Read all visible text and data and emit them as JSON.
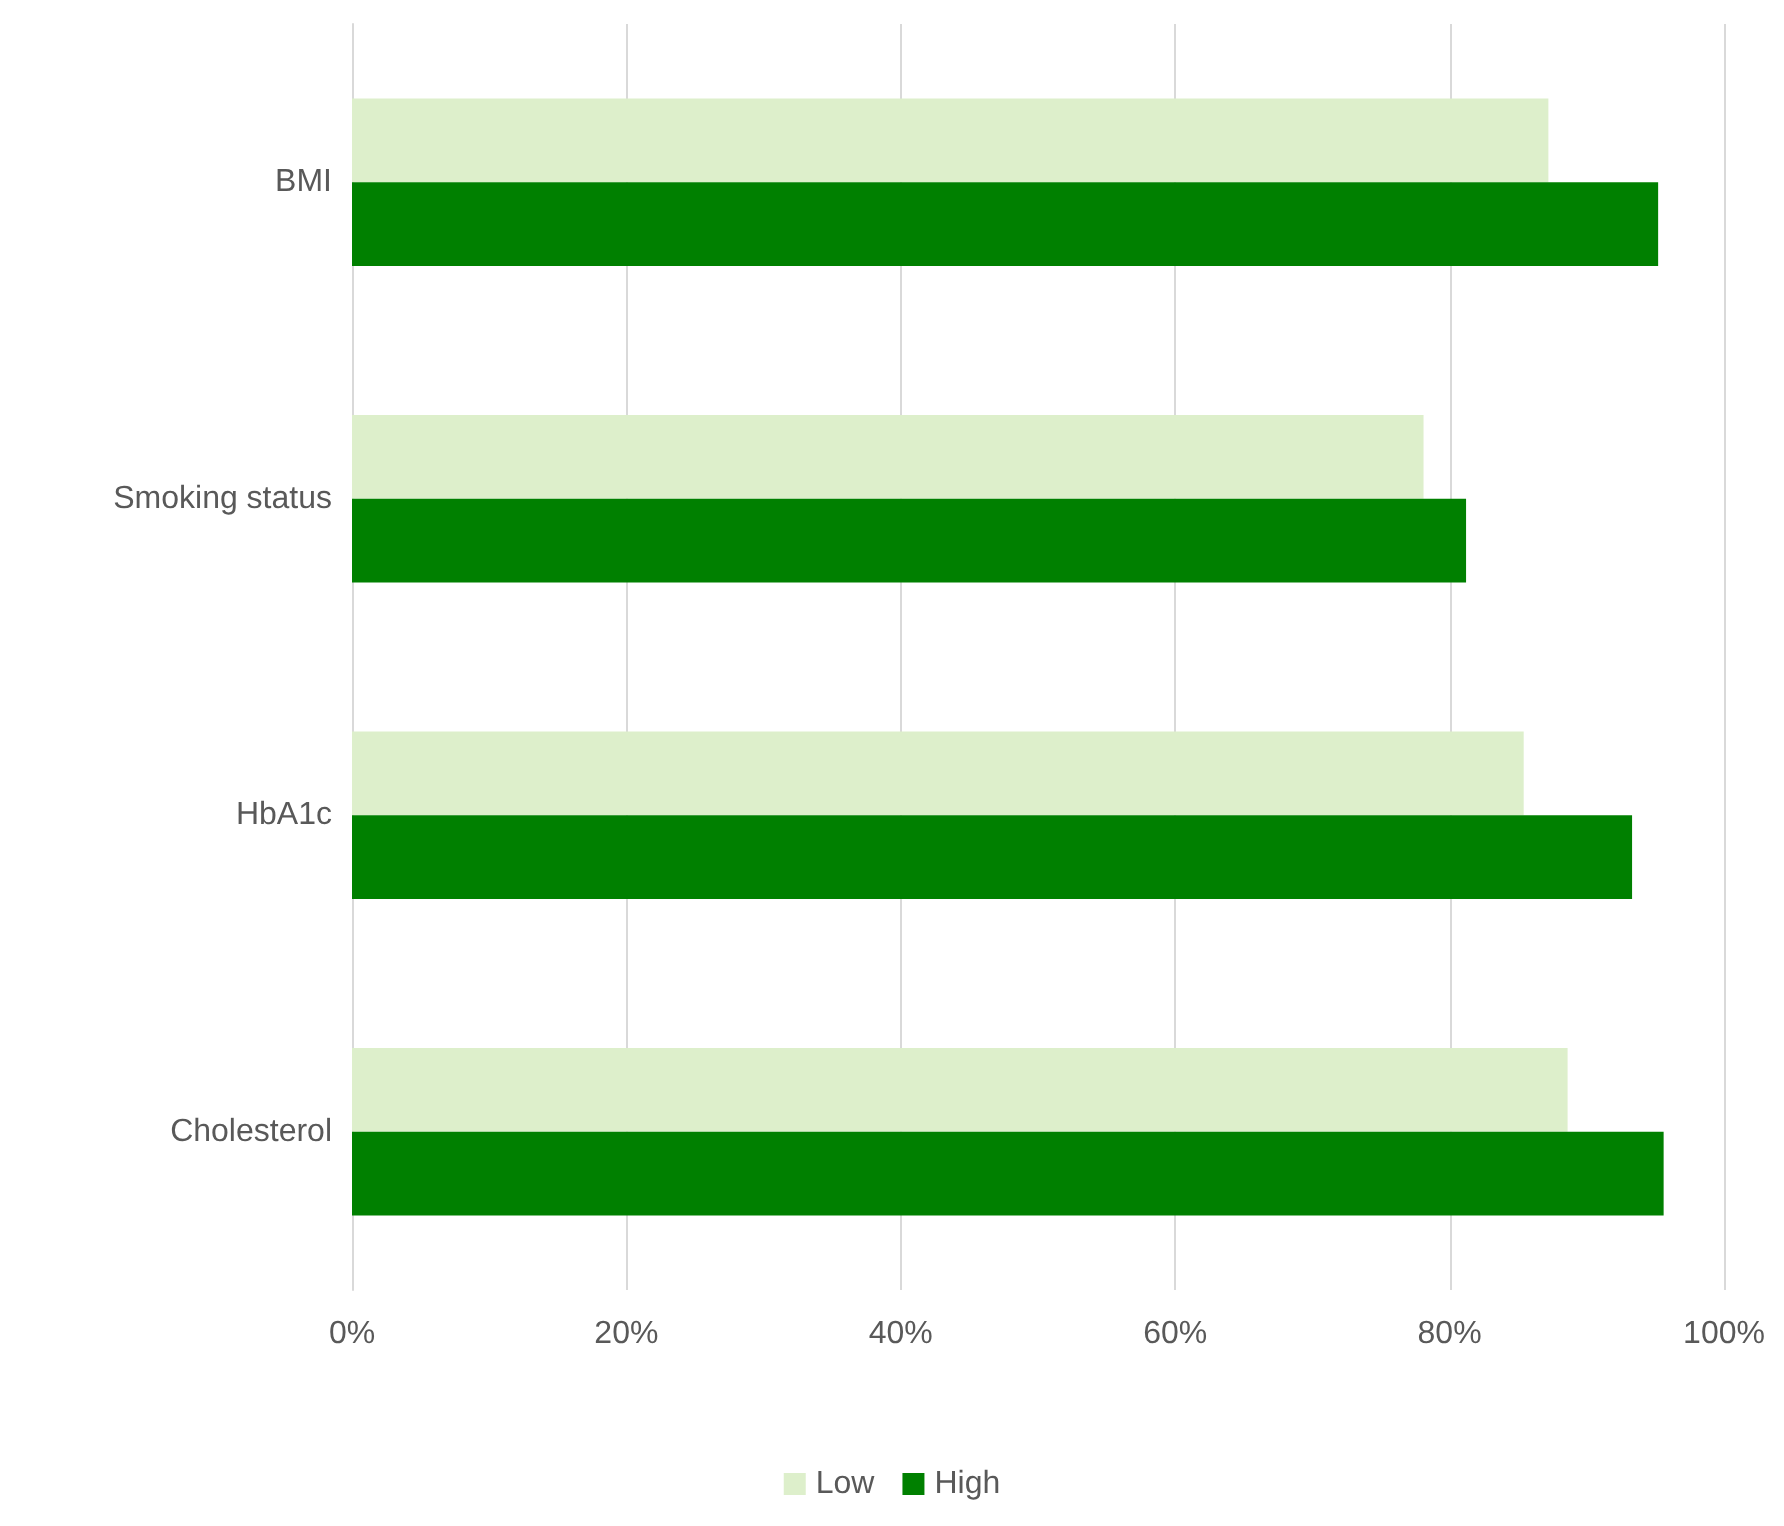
{
  "chart_data": {
    "type": "bar",
    "orientation": "horizontal",
    "categories": [
      "BMI",
      "Smoking status",
      "HbA1c",
      "Cholesterol"
    ],
    "series": [
      {
        "name": "Low",
        "color": "#ddefcb",
        "values": [
          87.2,
          78.1,
          85.4,
          88.6
        ]
      },
      {
        "name": "High",
        "color": "#008000",
        "values": [
          95.2,
          81.2,
          93.3,
          95.6
        ]
      }
    ],
    "xlim": [
      0,
      100
    ],
    "xticks": [
      {
        "value": 0,
        "label": "0%"
      },
      {
        "value": 20,
        "label": "20%"
      },
      {
        "value": 40,
        "label": "40%"
      },
      {
        "value": 60,
        "label": "60%"
      },
      {
        "value": 80,
        "label": "80%"
      },
      {
        "value": 100,
        "label": "100%"
      }
    ],
    "grid": "x",
    "legend": "bottom"
  }
}
